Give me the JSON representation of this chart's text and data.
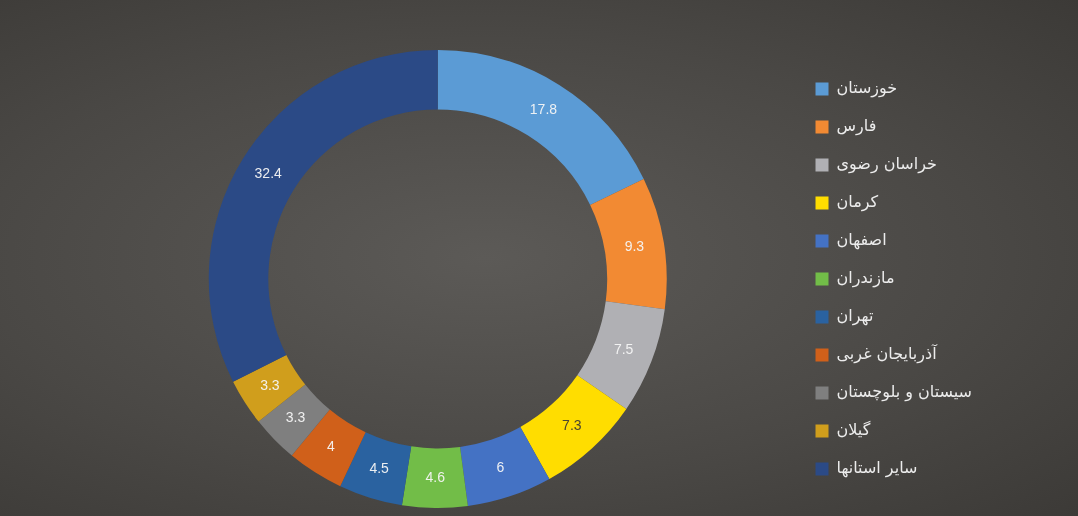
{
  "chart_data": {
    "type": "donut",
    "categories": [
      "خوزستان",
      "فارس",
      "خراسان رضوی",
      "کرمان",
      "اصفهان",
      "مازندران",
      "تهران",
      "آذربایجان غربی",
      "سیستان و بلوچستان",
      "گیلان",
      "سایر استانها"
    ],
    "values": [
      17.8,
      9.3,
      7.5,
      7.3,
      6,
      4.6,
      4.5,
      4,
      3.3,
      3.3,
      32.4
    ],
    "colors": [
      "#5b9bd5",
      "#f28a33",
      "#b0b0b4",
      "#ffdd00",
      "#4472c4",
      "#72bd48",
      "#2a62a0",
      "#d0601a",
      "#7f7f7f",
      "#d09e1c",
      "#2b4a86"
    ],
    "data_labels": true,
    "legend": "right"
  }
}
